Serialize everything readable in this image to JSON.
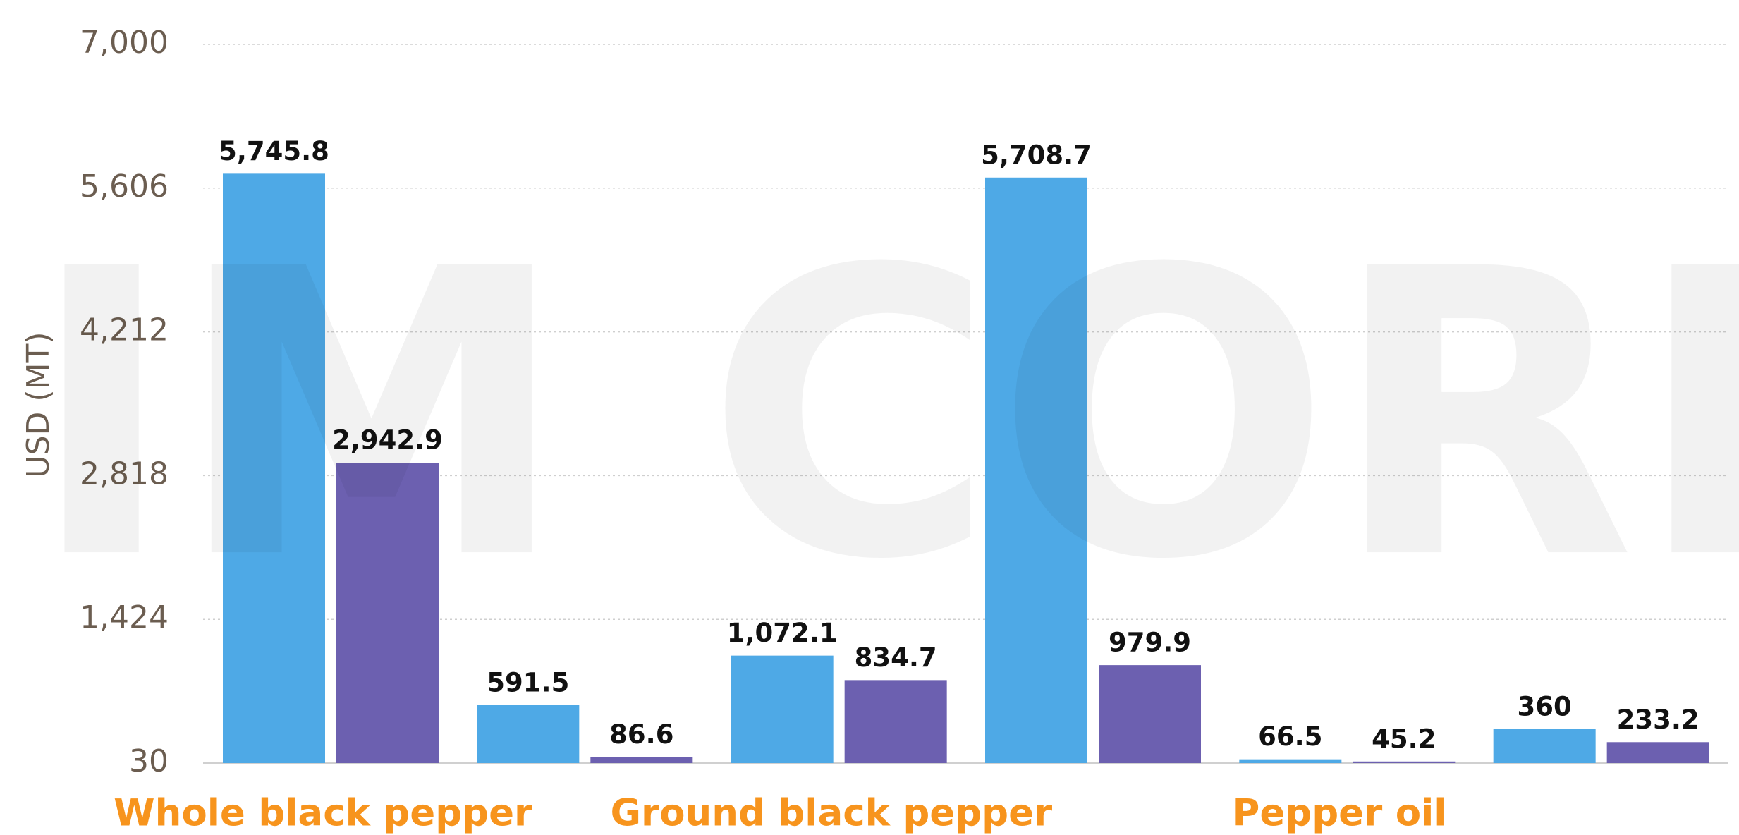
{
  "chart_data": {
    "type": "bar",
    "watermark": "IM CORP",
    "y_label": "USD (MT)",
    "categories": [
      "Whole black pepper",
      null,
      "Ground black pepper",
      null,
      "Pepper oil",
      null
    ],
    "series": [
      {
        "color": "#4ea9e6",
        "values": [
          5745.8,
          591.5,
          1072.1,
          5708.7,
          66.5,
          360
        ],
        "value_labels": [
          "5,745.8",
          "591.5",
          "1,072.1",
          "5,708.7",
          "66.5",
          "360"
        ]
      },
      {
        "color": "#6c60b0",
        "values": [
          2942.9,
          86.6,
          834.7,
          979.9,
          45.2,
          233.2
        ],
        "value_labels": [
          "2,942.9",
          "86.6",
          "834.7",
          "979.9",
          "45.2",
          "233.2"
        ]
      }
    ],
    "ylim": [
      30,
      7000
    ],
    "yticks": [
      30,
      {
        "value": 1424,
        "label": "1,424"
      },
      {
        "value": 2818,
        "label": "2,818"
      },
      {
        "value": 4212,
        "label": "4,212"
      },
      {
        "value": 5606,
        "label": "5,606"
      },
      {
        "value": 7000,
        "label": "7,000"
      }
    ],
    "grid": true
  }
}
